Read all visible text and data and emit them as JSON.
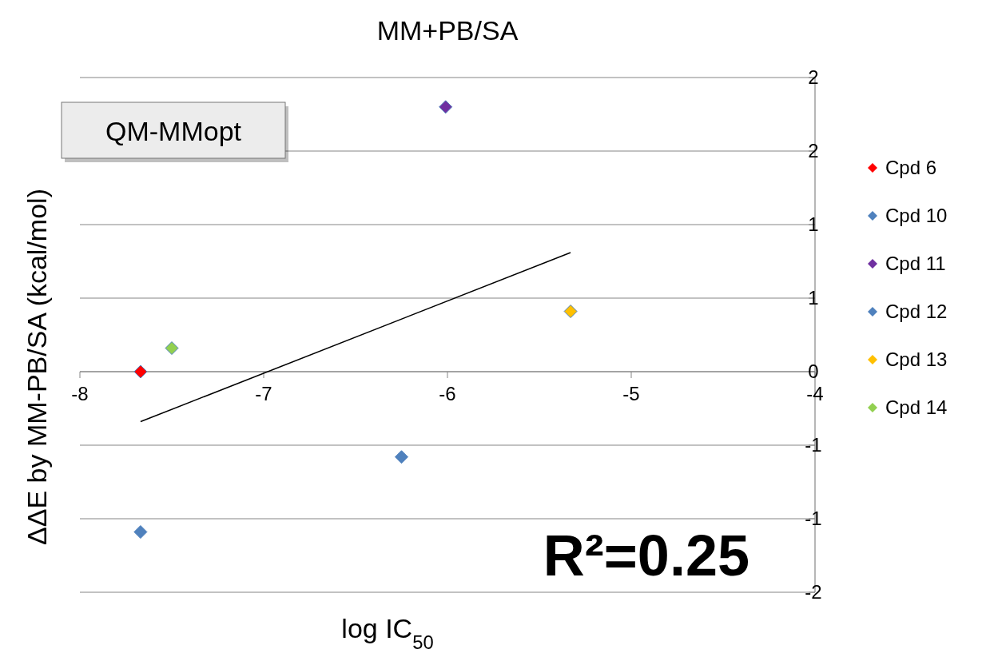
{
  "chart_data": {
    "type": "scatter",
    "title": "MM+PB/SA",
    "xlabel": "log IC$_{50}$",
    "ylabel": "ΔΔE by MM-PB/SA  (kcal/mol)",
    "xlim": [
      -8,
      -4
    ],
    "xticks": [
      -8,
      -7,
      -6,
      -5,
      -4
    ],
    "ylim": [
      -1.5,
      2
    ],
    "yticks": [
      {
        "value": 2,
        "label": "2"
      },
      {
        "value": 1.5,
        "label": "2"
      },
      {
        "value": 1,
        "label": "1"
      },
      {
        "value": 0.5,
        "label": "1"
      },
      {
        "value": 0,
        "label": "0"
      },
      {
        "value": -0.5,
        "label": "-1"
      },
      {
        "value": -1,
        "label": "-1"
      },
      {
        "value": -1.5,
        "label": "-2"
      }
    ],
    "grid": "y",
    "legend": "right",
    "marker": "diamond",
    "series": [
      {
        "name": "Cpd 6",
        "color": "#ff0000",
        "x": [
          -7.67
        ],
        "values": [
          0
        ]
      },
      {
        "name": "Cpd 10",
        "color": "#4f81bd",
        "x": [
          -7.67
        ],
        "values": [
          -1.09
        ]
      },
      {
        "name": "Cpd 11",
        "color": "#7030a0",
        "x": [
          -6.01
        ],
        "values": [
          1.8
        ]
      },
      {
        "name": "Cpd 12",
        "color": "#4f81bd",
        "x": [
          -6.25
        ],
        "values": [
          -0.58
        ]
      },
      {
        "name": "Cpd 13",
        "color": "#ffc000",
        "x": [
          -5.33
        ],
        "values": [
          0.41
        ]
      },
      {
        "name": "Cpd 14",
        "color": "#92d050",
        "x": [
          -7.5
        ],
        "values": [
          0.16
        ]
      },
      {
        "type": "line",
        "color": "#000000",
        "x": [
          -7.67,
          -5.33
        ],
        "values": [
          -0.34,
          0.81
        ],
        "marker": "none",
        "line_style": "solid"
      }
    ],
    "annotations": [
      "QM-MMopt",
      "R²=0.25"
    ]
  }
}
